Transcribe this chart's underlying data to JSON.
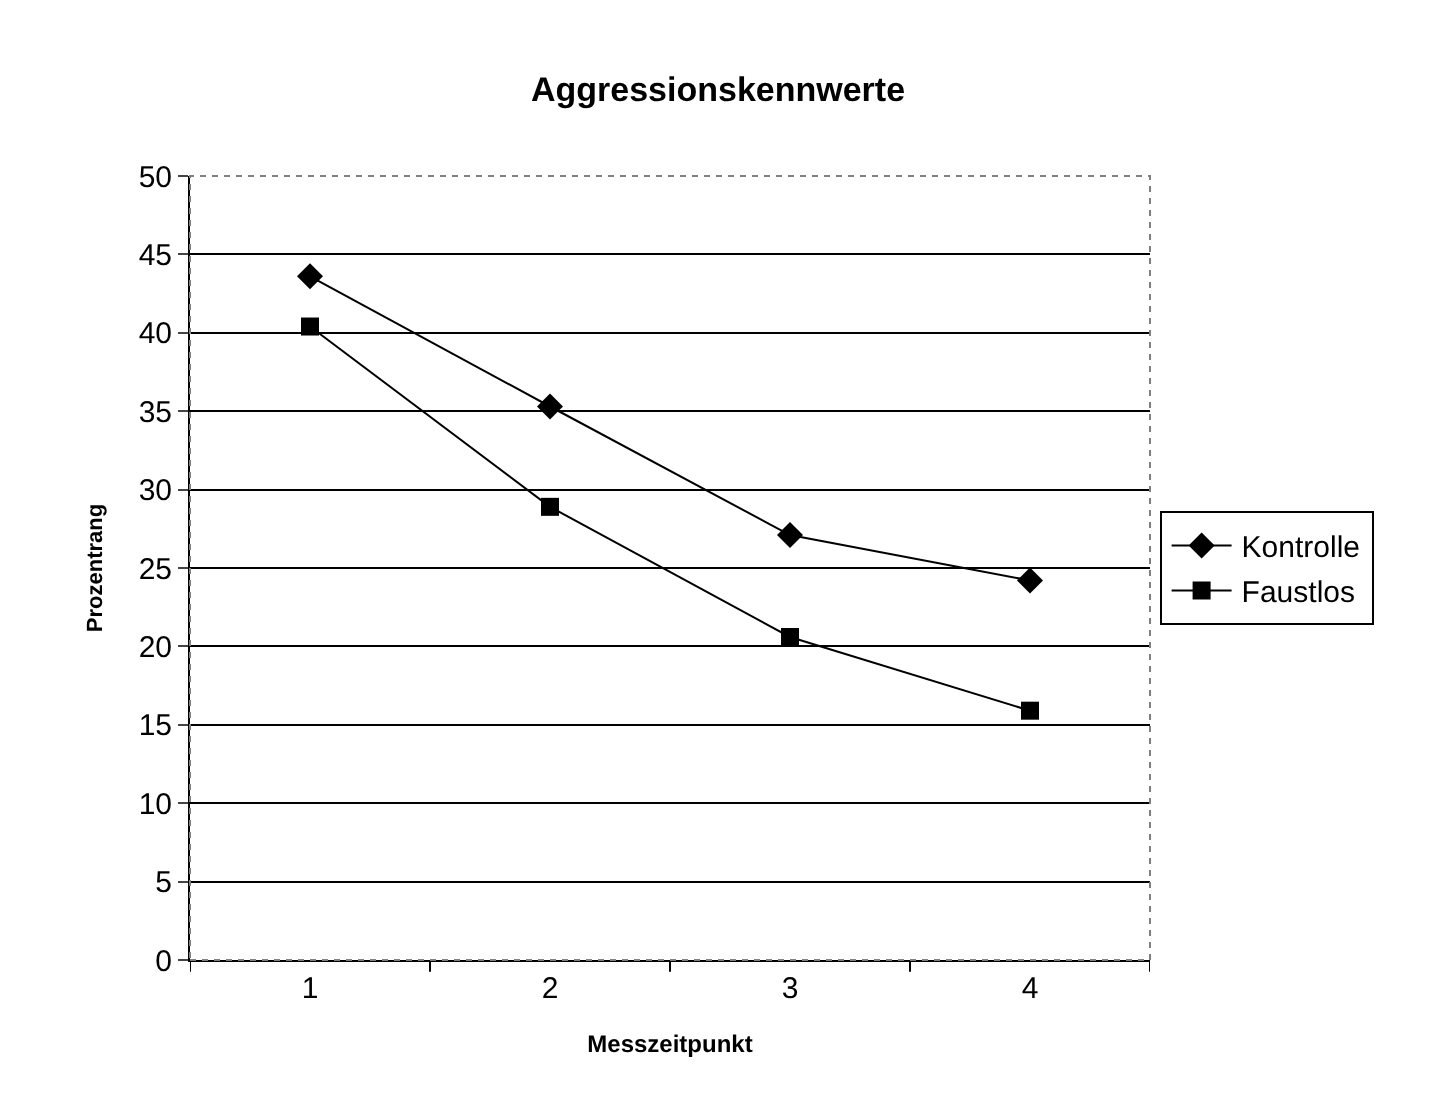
{
  "chart_data": {
    "type": "line",
    "title": "Aggressionskennwerte",
    "xlabel": "Messzeitpunkt",
    "ylabel": "Prozentrang",
    "categories": [
      "1",
      "2",
      "3",
      "4"
    ],
    "series": [
      {
        "name": "Kontrolle",
        "color": "#000000",
        "values": [
          43.6,
          35.3,
          27.1,
          24.2
        ],
        "marker": "diamond"
      },
      {
        "name": "Faustlos",
        "color": "#000000",
        "values": [
          40.4,
          28.9,
          20.6,
          15.9
        ],
        "marker": "square"
      }
    ],
    "ylim": [
      0,
      50
    ],
    "yticks": [
      0,
      5,
      10,
      15,
      20,
      25,
      30,
      35,
      40,
      45,
      50
    ],
    "grid": "y",
    "legend": "right",
    "line_style": "solid"
  }
}
